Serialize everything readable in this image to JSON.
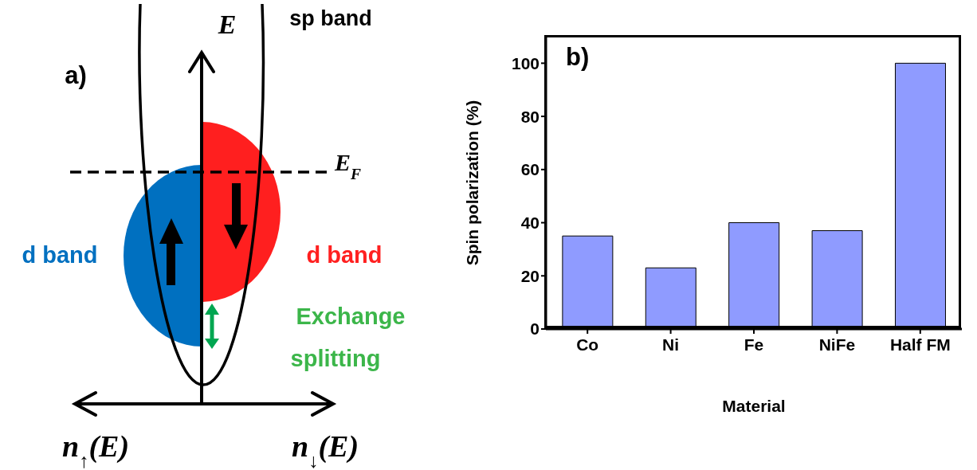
{
  "chart_data": [
    {
      "type": "other",
      "title": "a)",
      "annotations": [
        "E",
        "sp band",
        "E$_{F}$",
        "d band",
        "d band",
        "Exchange",
        "splitting",
        "n$_{↑}$(E)",
        "n$_{↓}$(E)"
      ]
    },
    {
      "type": "bar",
      "title": "b)",
      "xlabel": "Material",
      "ylabel": "Spin polarization (%)",
      "categories": [
        "Co",
        "Ni",
        "Fe",
        "NiFe",
        "Half FM"
      ],
      "values": [
        35,
        23,
        40,
        37,
        100
      ],
      "color": "#8f9bff",
      "ylim": [
        0,
        110
      ],
      "yticks": [
        0,
        20,
        40,
        60,
        80,
        100
      ],
      "grid": false,
      "legend": false
    }
  ]
}
